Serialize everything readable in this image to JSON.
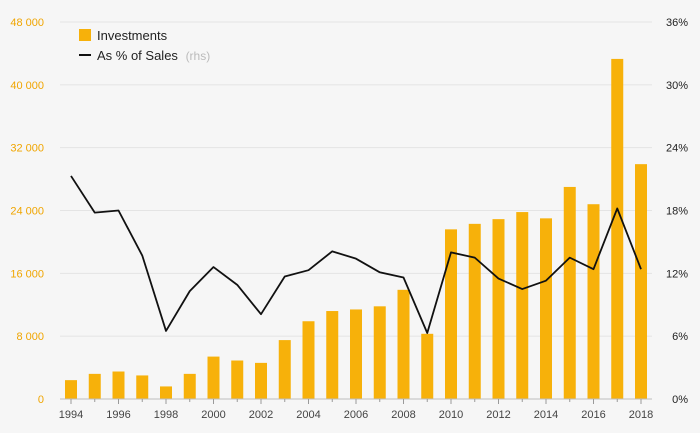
{
  "colors": {
    "bar": "#f7b10a",
    "line": "#111111",
    "grid": "#e4e4e4",
    "left_axis_text": "#f0a500",
    "right_axis_text": "#222222",
    "background": "#f6f6f6"
  },
  "legend": {
    "bar_label": "Investments",
    "line_label": "As % of Sales",
    "line_label_suffix": "(rhs)",
    "placement": "top-left"
  },
  "chart_data": {
    "type": "bar",
    "title": "",
    "xlabel": "",
    "ylabel": "",
    "grid": true,
    "categories": [
      "1994",
      "1995",
      "1996",
      "1997",
      "1998",
      "1999",
      "2000",
      "2001",
      "2002",
      "2003",
      "2004",
      "2005",
      "2006",
      "2007",
      "2008",
      "2009",
      "2010",
      "2011",
      "2012",
      "2013",
      "2014",
      "2015",
      "2016",
      "2017",
      "2018"
    ],
    "x_tick_labels": [
      "1994",
      "1996",
      "1998",
      "2000",
      "2002",
      "2004",
      "2006",
      "2008",
      "2010",
      "2012",
      "2014",
      "2016",
      "2018"
    ],
    "ylim_left": [
      0,
      48000
    ],
    "ylim_right": [
      0,
      36
    ],
    "left_ticks": [
      0,
      8000,
      16000,
      24000,
      32000,
      40000,
      48000
    ],
    "left_tick_labels": [
      "0",
      "8 000",
      "16 000",
      "24 000",
      "32 000",
      "40 000",
      "48 000"
    ],
    "right_ticks": [
      0,
      6,
      12,
      18,
      24,
      30,
      36
    ],
    "right_tick_labels": [
      "0%",
      "6%",
      "12%",
      "18%",
      "24%",
      "30%",
      "36%"
    ],
    "series": [
      {
        "name": "Investments",
        "type": "bar",
        "axis": "left",
        "values": [
          2400,
          3200,
          3500,
          3000,
          1600,
          3200,
          5400,
          4900,
          4600,
          7500,
          9900,
          11200,
          11400,
          11800,
          13900,
          8300,
          21600,
          22300,
          22900,
          23800,
          23000,
          27000,
          24800,
          43300,
          29900
        ]
      },
      {
        "name": "As % of Sales",
        "type": "line",
        "axis": "right",
        "values": [
          21.3,
          17.8,
          18.0,
          13.7,
          6.5,
          10.3,
          12.6,
          10.9,
          8.1,
          11.7,
          12.3,
          14.1,
          13.4,
          12.1,
          11.6,
          6.3,
          14.0,
          13.5,
          11.5,
          10.5,
          11.3,
          13.5,
          12.4,
          18.2,
          12.4
        ]
      }
    ]
  }
}
